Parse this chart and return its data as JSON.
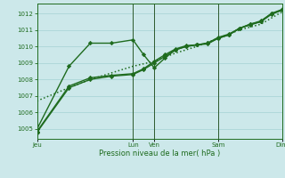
{
  "xlabel": "Pression niveau de la mer( hPa )",
  "ylim": [
    1004.4,
    1012.6
  ],
  "yticks": [
    1005,
    1006,
    1007,
    1008,
    1009,
    1010,
    1011,
    1012
  ],
  "xtick_labels": [
    "Jeu",
    "Lun",
    "Ven",
    "Sam",
    "Dim"
  ],
  "xtick_positions": [
    0,
    9,
    11,
    17,
    23
  ],
  "xlim": [
    0,
    23
  ],
  "bg_color": "#cce8ea",
  "grid_color": "#b0d8da",
  "line_color": "#1e6b1e",
  "lines": [
    {
      "x": [
        0,
        3,
        5,
        7,
        9,
        10,
        11,
        12,
        13,
        14,
        15,
        16,
        17,
        18,
        19,
        20,
        21,
        22,
        23
      ],
      "y": [
        1005.0,
        1008.8,
        1010.2,
        1010.2,
        1010.4,
        1009.5,
        1008.7,
        1009.3,
        1009.8,
        1010.0,
        1010.1,
        1010.2,
        1010.5,
        1010.7,
        1011.1,
        1011.35,
        1011.55,
        1012.0,
        1012.2
      ],
      "style": "-",
      "marker": "D",
      "markersize": 2.2,
      "lw": 1.0
    },
    {
      "x": [
        0,
        3,
        5,
        7,
        9,
        10,
        11,
        12,
        13,
        14,
        15,
        16,
        17,
        18,
        19,
        20,
        21,
        22,
        23
      ],
      "y": [
        1004.8,
        1007.5,
        1008.0,
        1008.2,
        1008.3,
        1008.6,
        1009.0,
        1009.4,
        1009.8,
        1010.0,
        1010.1,
        1010.15,
        1010.5,
        1010.7,
        1011.1,
        1011.3,
        1011.5,
        1011.95,
        1012.2
      ],
      "style": "-",
      "marker": "D",
      "markersize": 2.2,
      "lw": 1.0
    },
    {
      "x": [
        0,
        3,
        5,
        7,
        9,
        10,
        11,
        12,
        13,
        14,
        15,
        16,
        17,
        18,
        19,
        20,
        21,
        22,
        23
      ],
      "y": [
        1004.85,
        1007.6,
        1008.1,
        1008.25,
        1008.35,
        1008.65,
        1009.1,
        1009.5,
        1009.85,
        1010.05,
        1010.1,
        1010.2,
        1010.55,
        1010.75,
        1011.1,
        1011.35,
        1011.5,
        1012.0,
        1012.25
      ],
      "style": "-",
      "marker": "D",
      "markersize": 2.2,
      "lw": 1.0
    },
    {
      "x": [
        0,
        3,
        5,
        7,
        9,
        11,
        13,
        15,
        17,
        19,
        21,
        23
      ],
      "y": [
        1006.7,
        1007.5,
        1008.0,
        1008.4,
        1008.8,
        1009.1,
        1009.6,
        1010.0,
        1010.5,
        1011.0,
        1011.35,
        1012.1
      ],
      "style": ":",
      "marker": null,
      "markersize": 0,
      "lw": 1.1
    }
  ],
  "vline_positions": [
    9,
    11,
    17
  ],
  "vline_color": "#2d5a2d"
}
